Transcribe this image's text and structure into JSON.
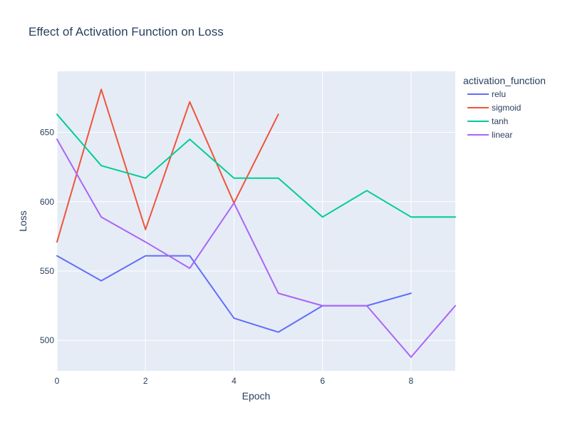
{
  "chart_data": {
    "type": "line",
    "title": "Effect of Activation Function on Loss",
    "xlabel": "Epoch",
    "ylabel": "Loss",
    "xlim": [
      0,
      9
    ],
    "ylim": [
      478,
      694
    ],
    "x_ticks": [
      0,
      2,
      4,
      6,
      8
    ],
    "y_ticks": [
      500,
      550,
      600,
      650
    ],
    "grid": true,
    "plot_background": "#e5ecf6",
    "legend": {
      "title": "activation_function",
      "placement": "right-top"
    },
    "series": [
      {
        "name": "relu",
        "color": "#636efa",
        "x": [
          0,
          1,
          2,
          3,
          4,
          5,
          6,
          7,
          8
        ],
        "values": [
          561,
          543,
          561,
          561,
          516,
          506,
          525,
          525,
          534
        ]
      },
      {
        "name": "sigmoid",
        "color": "#ef553b",
        "x": [
          0,
          1,
          2,
          3,
          4,
          5
        ],
        "values": [
          571,
          681,
          580,
          672,
          599,
          663
        ]
      },
      {
        "name": "tanh",
        "color": "#00cc96",
        "x": [
          0,
          1,
          2,
          3,
          4,
          5,
          6,
          7,
          8,
          9
        ],
        "values": [
          663,
          626,
          617,
          645,
          617,
          617,
          589,
          608,
          589,
          589
        ]
      },
      {
        "name": "linear",
        "color": "#ab63fa",
        "x": [
          0,
          1,
          2,
          3,
          4,
          5,
          6,
          7,
          8,
          9
        ],
        "values": [
          645,
          589,
          571,
          552,
          599,
          534,
          525,
          525,
          488,
          525
        ]
      }
    ]
  }
}
